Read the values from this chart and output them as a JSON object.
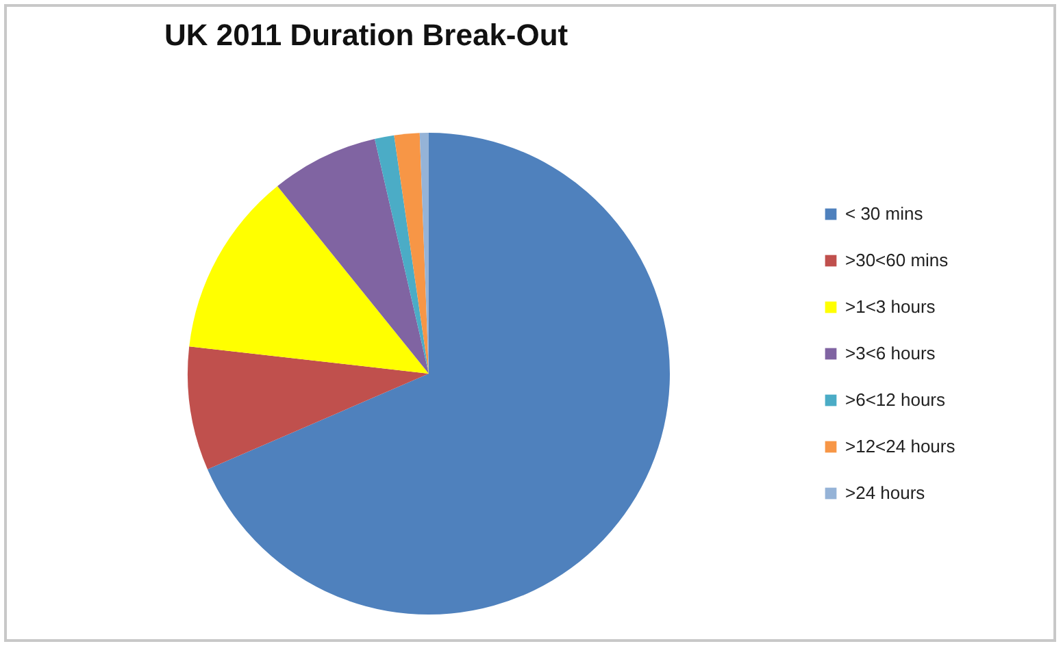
{
  "chart_data": {
    "type": "pie",
    "title": "UK 2011 Duration Break-Out",
    "categories": [
      "< 30 mins",
      ">30<60 mins",
      ">1<3 hours",
      ">3<6 hours",
      ">6<12 hours",
      ">12<24 hours",
      ">24 hours"
    ],
    "values": [
      68.5,
      8.3,
      12.4,
      7.2,
      1.3,
      1.7,
      0.6
    ],
    "colors": [
      "#4f81bd",
      "#c0504d",
      "#ffff00",
      "#8064a2",
      "#4bacc6",
      "#f79646",
      "#95b3d7"
    ],
    "legend": "right"
  }
}
